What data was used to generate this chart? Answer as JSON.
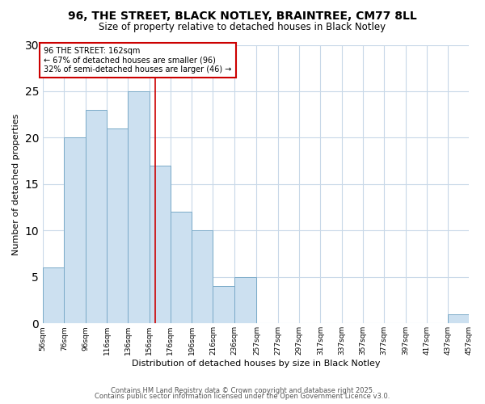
{
  "title": "96, THE STREET, BLACK NOTLEY, BRAINTREE, CM77 8LL",
  "subtitle": "Size of property relative to detached houses in Black Notley",
  "xlabel": "Distribution of detached houses by size in Black Notley",
  "ylabel": "Number of detached properties",
  "bar_color": "#cce0f0",
  "bar_edge_color": "#7aaac8",
  "background_color": "#ffffff",
  "grid_color": "#c8d8e8",
  "bin_edges": [
    56,
    76,
    96,
    116,
    136,
    156,
    176,
    196,
    216,
    236,
    257,
    277,
    297,
    317,
    337,
    357,
    377,
    397,
    417,
    437,
    457
  ],
  "bin_labels": [
    "56sqm",
    "76sqm",
    "96sqm",
    "116sqm",
    "136sqm",
    "156sqm",
    "176sqm",
    "196sqm",
    "216sqm",
    "236sqm",
    "257sqm",
    "277sqm",
    "297sqm",
    "317sqm",
    "337sqm",
    "357sqm",
    "377sqm",
    "397sqm",
    "417sqm",
    "437sqm",
    "457sqm"
  ],
  "counts": [
    6,
    20,
    23,
    21,
    25,
    17,
    12,
    10,
    4,
    5,
    0,
    0,
    0,
    0,
    0,
    0,
    0,
    0,
    0,
    1
  ],
  "vline_x": 162,
  "vline_color": "#cc0000",
  "annotation_title": "96 THE STREET: 162sqm",
  "annotation_line1": "← 67% of detached houses are smaller (96)",
  "annotation_line2": "32% of semi-detached houses are larger (46) →",
  "annotation_box_color": "#ffffff",
  "annotation_box_edge_color": "#cc0000",
  "ylim": [
    0,
    30
  ],
  "yticks": [
    0,
    5,
    10,
    15,
    20,
    25,
    30
  ],
  "footer1": "Contains HM Land Registry data © Crown copyright and database right 2025.",
  "footer2": "Contains public sector information licensed under the Open Government Licence v3.0."
}
